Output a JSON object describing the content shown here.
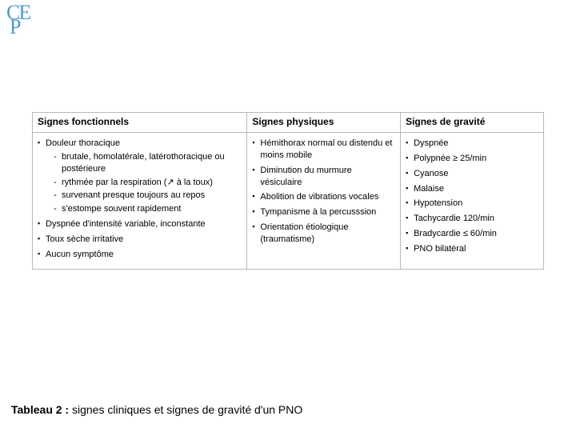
{
  "logo": {
    "line1": "CE",
    "line2": "P"
  },
  "table": {
    "headers": [
      "Signes fonctionnels",
      "Signes physiques",
      "Signes de gravité"
    ],
    "col1": {
      "item1": "Douleur thoracique",
      "item1_sub": [
        "brutale, homolatérale, latérothoracique ou postérieure",
        "rythmée par la respiration (↗ à la toux)",
        "survenant presque toujours au repos",
        "s'estompe  souvent rapidement"
      ],
      "item2": "Dyspnée d'intensité variable, inconstante",
      "item3": "Toux sèche irritative",
      "item4": "Aucun symptôme"
    },
    "col2": [
      "Hémithorax normal ou distendu et moins mobile",
      "Diminution du murmure vésiculaire",
      "Abolition de vibrations vocales",
      "Tympanisme à la percusssion",
      "Orientation étiologique (traumatisme)"
    ],
    "col3": [
      "Dyspnée",
      "Polypnée ≥ 25/min",
      "Cyanose",
      "Malaise",
      "Hypotension",
      "Tachycardie 120/min",
      "Bradycardie ≤ 60/min",
      "PNO bilatéral"
    ]
  },
  "caption": {
    "bold": "Tableau 2 :",
    "rest": " signes cliniques et signes de gravité d'un PNO"
  }
}
